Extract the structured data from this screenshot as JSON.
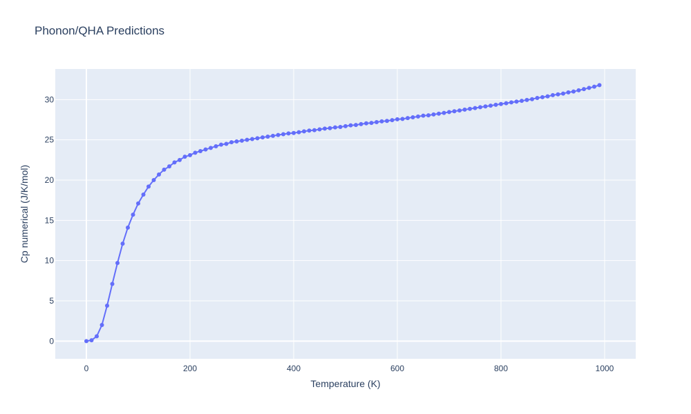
{
  "chart_data": {
    "type": "line",
    "title": "Phonon/QHA Predictions",
    "xlabel": "Temperature (K)",
    "ylabel": "Cp numerical (J/K/mol)",
    "xlim": [
      -60,
      1060
    ],
    "ylim": [
      -2.2,
      33.8
    ],
    "x_ticks": [
      0,
      200,
      400,
      600,
      800,
      1000
    ],
    "y_ticks": [
      0,
      5,
      10,
      15,
      20,
      25,
      30
    ],
    "grid": true,
    "legend": "none",
    "colors": {
      "series": "#636efa",
      "plot_bg": "#e5ecf6",
      "grid": "#ffffff",
      "text": "#2a3f5f"
    },
    "series": [
      {
        "x": [
          0,
          10,
          20,
          30,
          40,
          50,
          60,
          70,
          80,
          90,
          100,
          110,
          120,
          130,
          140,
          150,
          160,
          170,
          180,
          190,
          200,
          210,
          220,
          230,
          240,
          250,
          260,
          270,
          280,
          290,
          300,
          310,
          320,
          330,
          340,
          350,
          360,
          370,
          380,
          390,
          400,
          410,
          420,
          430,
          440,
          450,
          460,
          470,
          480,
          490,
          500,
          510,
          520,
          530,
          540,
          550,
          560,
          570,
          580,
          590,
          600,
          610,
          620,
          630,
          640,
          650,
          660,
          670,
          680,
          690,
          700,
          710,
          720,
          730,
          740,
          750,
          760,
          770,
          780,
          790,
          800,
          810,
          820,
          830,
          840,
          850,
          860,
          870,
          880,
          890,
          900,
          910,
          920,
          930,
          940,
          950,
          960,
          970,
          980,
          990
        ],
        "y": [
          0,
          0.1,
          0.6,
          2.0,
          4.4,
          7.1,
          9.7,
          12.1,
          14.1,
          15.7,
          17.1,
          18.2,
          19.2,
          20.0,
          20.7,
          21.3,
          21.7,
          22.2,
          22.5,
          22.9,
          23.1,
          23.4,
          23.6,
          23.8,
          24.0,
          24.2,
          24.4,
          24.5,
          24.7,
          24.8,
          24.9,
          25.0,
          25.1,
          25.2,
          25.3,
          25.4,
          25.5,
          25.6,
          25.7,
          25.8,
          25.85,
          25.95,
          26.05,
          26.15,
          26.2,
          26.3,
          26.4,
          26.45,
          26.55,
          26.6,
          26.7,
          26.8,
          26.85,
          26.95,
          27.05,
          27.1,
          27.2,
          27.3,
          27.35,
          27.45,
          27.55,
          27.6,
          27.7,
          27.8,
          27.9,
          28.0,
          28.05,
          28.15,
          28.25,
          28.35,
          28.45,
          28.55,
          28.65,
          28.75,
          28.85,
          28.95,
          29.05,
          29.15,
          29.25,
          29.35,
          29.45,
          29.55,
          29.65,
          29.75,
          29.85,
          29.95,
          30.05,
          30.2,
          30.3,
          30.4,
          30.55,
          30.65,
          30.75,
          30.9,
          31.0,
          31.15,
          31.3,
          31.45,
          31.6,
          31.8
        ]
      }
    ]
  }
}
